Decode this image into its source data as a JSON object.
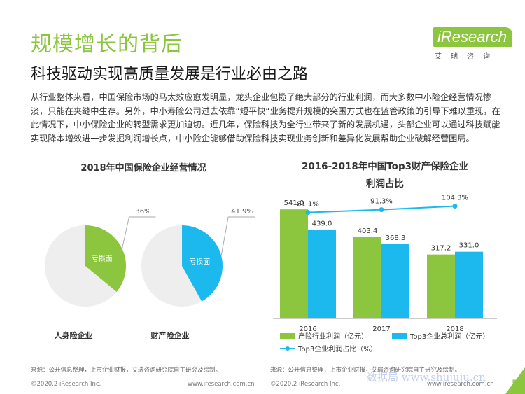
{
  "header": {
    "title": "规模增长的背后",
    "subtitle": "科技驱动实现高质量发展是行业必由之路",
    "logo_main": "iResearch",
    "logo_sub": "艾瑞咨询"
  },
  "intro": "从行业整体来看，中国保险市场的马太效应愈发明显，龙头企业包揽了绝大部分的行业利润，而大多数中小险企经营情况惨淡，只能在夹缝中生存。另外，中小寿险公司过去依靠“短平快“业务提升规模的突围方式也在监管政策的引导下难以重现，在此情况下，中小保险企业的转型需求更加迫切。近几年，保险科技为全行业带来了新的发展机遇，头部企业可以通过科技赋能实现降本增效进一步发掘利润增长点，中小险企能够借助保险科技实现业务创新和差异化发展帮助企业破解经营困局。",
  "colors": {
    "green": "#8cc63f",
    "blue": "#1cb9ee",
    "grey": "#eeeeee",
    "line": "#1cb9ee"
  },
  "chart_data": [
    {
      "type": "pie",
      "title": "2018年中国保险企业经营情况",
      "charts": [
        {
          "name": "人身险企业",
          "slice_label": "亏损面",
          "value": 36,
          "value_label": "36%",
          "color": "#8cc63f"
        },
        {
          "name": "财产险企业",
          "slice_label": "亏损面",
          "value": 41.9,
          "value_label": "41.9%",
          "color": "#1cb9ee"
        }
      ]
    },
    {
      "type": "bar",
      "title_line1": "2016-2018年中国Top3财产保险企业",
      "title_line2": "利润占比",
      "categories": [
        "2016",
        "2017",
        "2018"
      ],
      "series": [
        {
          "name": "产险行业利润（亿元）",
          "values": [
            541.0,
            403.4,
            317.2
          ],
          "labels": [
            "541.0",
            "403.4",
            "317.2"
          ],
          "color": "#8cc63f"
        },
        {
          "name": "Top3企业总利润（亿元）",
          "values": [
            439.0,
            368.3,
            331.0
          ],
          "labels": [
            "439.0",
            "368.3",
            "331.0"
          ],
          "color": "#1cb9ee"
        }
      ],
      "line_series": {
        "name": "Top3企业利润占比（%）",
        "values": [
          81.1,
          91.3,
          104.3
        ],
        "labels": [
          "81.1%",
          "91.3%",
          "104.3%"
        ],
        "color": "#1cb9ee"
      },
      "ylim": [
        0,
        600
      ]
    }
  ],
  "footer": {
    "source_left": "来源：公开信息整理，上市企业财报，艾瑞咨询研究院自主研究及绘制。",
    "source_right": "来源：公开信息整理，上市企业财报，艾瑞咨询研究院自主研究及绘制。",
    "copyright_left": "©2020.2 iResearch Inc.",
    "site_left": "www.iresearch.com.cn",
    "copyright_right": "©2020.2 iResearch Inc.",
    "site_right": "www.iresearch.com.cn",
    "page_number": "5",
    "watermark": "数据局 www.shujuju.cn"
  }
}
